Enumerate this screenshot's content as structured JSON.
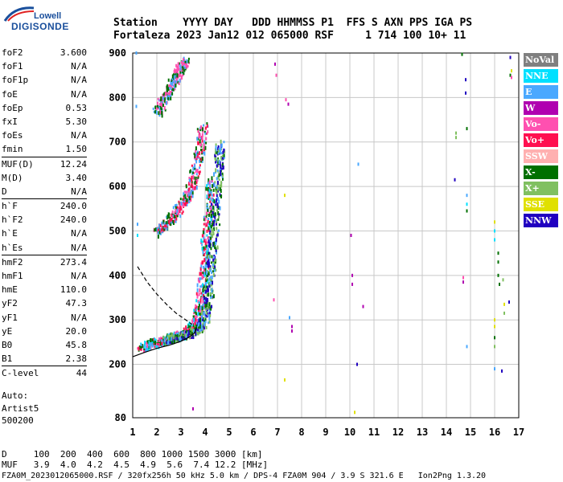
{
  "logo": {
    "line1": "Lowell",
    "line2": "DIGISONDE"
  },
  "header": {
    "row1": "Station    YYYY DAY   DDD HHMMSS P1  FFS S AXN PPS IGA PS",
    "row2": "Fortaleza 2023 Jan12 012 065000 RSF     1 714 100 10+ 11"
  },
  "params": [
    {
      "name": "foF2",
      "value": "3.600"
    },
    {
      "name": "foF1",
      "value": "N/A"
    },
    {
      "name": "foF1p",
      "value": "N/A"
    },
    {
      "name": "foE",
      "value": "N/A"
    },
    {
      "name": "foEp",
      "value": "0.53"
    },
    {
      "name": "fxI",
      "value": "5.30"
    },
    {
      "name": "foEs",
      "value": "N/A"
    },
    {
      "name": "fmin",
      "value": "1.50"
    },
    {
      "name": "MUF(D)",
      "value": "12.24",
      "sep": true
    },
    {
      "name": "M(D)",
      "value": "3.40"
    },
    {
      "name": "D",
      "value": "N/A"
    },
    {
      "name": "h`F",
      "value": "240.0",
      "sep": true
    },
    {
      "name": "h`F2",
      "value": "240.0"
    },
    {
      "name": "h`E",
      "value": "N/A"
    },
    {
      "name": "h`Es",
      "value": "N/A"
    },
    {
      "name": "hmF2",
      "value": "273.4",
      "sep": true
    },
    {
      "name": "hmF1",
      "value": "N/A"
    },
    {
      "name": "hmE",
      "value": "110.0"
    },
    {
      "name": "yF2",
      "value": "47.3"
    },
    {
      "name": "yF1",
      "value": "N/A"
    },
    {
      "name": "yE",
      "value": "20.0"
    },
    {
      "name": "B0",
      "value": "45.8"
    },
    {
      "name": "B1",
      "value": "2.38"
    },
    {
      "name": "C-level",
      "value": "44",
      "sep": true
    }
  ],
  "auto": {
    "line1": "Auto:",
    "line2": "Artist5",
    "line3": "500200"
  },
  "footer": {
    "row_d": "D     100  200  400  600  800 1000 1500 3000 [km]",
    "row_muf": "MUF   3.9  4.0  4.2  4.5  4.9  5.6  7.4 12.2 [MHz]",
    "info": "FZA0M_2023012065000.RSF / 320fx256h 50 kHz 5.0 km / DPS-4 FZA0M 904 / 3.9 S 321.6 E   Ion2Png 1.3.20"
  },
  "legend": [
    {
      "label": "NoVal",
      "color": "#808080"
    },
    {
      "label": "NNE",
      "color": "#00e0ff"
    },
    {
      "label": "E",
      "color": "#4aa8ff"
    },
    {
      "label": "W",
      "color": "#b000b0"
    },
    {
      "label": "Vo-",
      "color": "#ff50b0"
    },
    {
      "label": "Vo+",
      "color": "#ff1050"
    },
    {
      "label": "SSW",
      "color": "#ffb0b0"
    },
    {
      "label": "X-",
      "color": "#007000"
    },
    {
      "label": "X+",
      "color": "#80c060"
    },
    {
      "label": "SSE",
      "color": "#e0e000"
    },
    {
      "label": "NNW",
      "color": "#2000c0"
    }
  ],
  "chart_data": {
    "type": "scatter",
    "title": "",
    "xlabel": "",
    "ylabel": "",
    "xlim": [
      1,
      17
    ],
    "ylim": [
      80,
      900
    ],
    "x_ticks": [
      1,
      2,
      3,
      4,
      5,
      6,
      7,
      8,
      9,
      10,
      11,
      12,
      13,
      14,
      15,
      16,
      17
    ],
    "y_ticks": [
      80,
      200,
      300,
      400,
      500,
      600,
      700,
      800,
      900
    ],
    "grid": true,
    "legend_position": "right",
    "profile_solid": [
      [
        1.0,
        217
      ],
      [
        1.5,
        227
      ],
      [
        2.0,
        236
      ],
      [
        2.5,
        243
      ],
      [
        3.0,
        252
      ],
      [
        3.3,
        260
      ],
      [
        3.55,
        270
      ],
      [
        3.65,
        283
      ]
    ],
    "profile_dashed": [
      [
        1.2,
        420
      ],
      [
        1.6,
        385
      ],
      [
        2.0,
        358
      ],
      [
        2.4,
        335
      ],
      [
        2.8,
        315
      ],
      [
        3.2,
        300
      ],
      [
        3.45,
        290
      ]
    ],
    "traces": [
      {
        "name": "F2 O-trace",
        "points": [
          [
            1.3,
            240
          ],
          [
            1.8,
            250
          ],
          [
            2.2,
            256
          ],
          [
            2.6,
            262
          ],
          [
            3.0,
            268
          ],
          [
            3.3,
            276
          ],
          [
            3.55,
            292
          ],
          [
            3.75,
            330
          ],
          [
            3.9,
            400
          ],
          [
            4.0,
            470
          ],
          [
            4.1,
            540
          ],
          [
            4.2,
            620
          ]
        ],
        "colors": [
          "#ff1050",
          "#ff50b0",
          "#4aa8ff",
          "#00e0ff",
          "#007000"
        ]
      },
      {
        "name": "F2 X-trace",
        "points": [
          [
            2.3,
            258
          ],
          [
            2.8,
            264
          ],
          [
            3.3,
            272
          ],
          [
            3.7,
            282
          ],
          [
            4.0,
            310
          ],
          [
            4.15,
            370
          ],
          [
            4.25,
            430
          ],
          [
            4.35,
            500
          ],
          [
            4.45,
            580
          ],
          [
            4.55,
            660
          ],
          [
            4.6,
            700
          ]
        ],
        "colors": [
          "#2000c0",
          "#007000",
          "#80c060",
          "#4aa8ff"
        ]
      },
      {
        "name": "Multihop",
        "points": [
          [
            2.0,
            500
          ],
          [
            2.4,
            520
          ],
          [
            2.8,
            545
          ],
          [
            3.2,
            575
          ],
          [
            3.5,
            620
          ],
          [
            3.75,
            680
          ],
          [
            3.9,
            740
          ]
        ],
        "colors": [
          "#ff1050",
          "#ff50b0",
          "#007000",
          "#4aa8ff"
        ]
      },
      {
        "name": "Multihop 3",
        "points": [
          [
            2.0,
            770
          ],
          [
            2.3,
            800
          ],
          [
            2.6,
            830
          ],
          [
            2.9,
            860
          ],
          [
            3.2,
            890
          ]
        ],
        "colors": [
          "#ff50b0",
          "#007000",
          "#4aa8ff"
        ]
      }
    ],
    "scattered_points": [
      {
        "x": 1.15,
        "y": 900,
        "c": "#4aa8ff"
      },
      {
        "x": 1.15,
        "y": 780,
        "c": "#4aa8ff"
      },
      {
        "x": 1.2,
        "y": 515,
        "c": "#4aa8ff"
      },
      {
        "x": 1.2,
        "y": 490,
        "c": "#00e0ff"
      },
      {
        "x": 6.9,
        "y": 875,
        "c": "#b000b0"
      },
      {
        "x": 6.95,
        "y": 850,
        "c": "#ff50b0"
      },
      {
        "x": 7.35,
        "y": 795,
        "c": "#ff50b0"
      },
      {
        "x": 7.45,
        "y": 785,
        "c": "#b000b0"
      },
      {
        "x": 7.3,
        "y": 580,
        "c": "#e0e000"
      },
      {
        "x": 7.3,
        "y": 165,
        "c": "#e0e000"
      },
      {
        "x": 7.5,
        "y": 305,
        "c": "#4aa8ff"
      },
      {
        "x": 7.6,
        "y": 285,
        "c": "#b000b0"
      },
      {
        "x": 7.6,
        "y": 275,
        "c": "#b000b0"
      },
      {
        "x": 6.85,
        "y": 345,
        "c": "#ff50b0"
      },
      {
        "x": 3.5,
        "y": 100,
        "c": "#b000b0"
      },
      {
        "x": 10.05,
        "y": 490,
        "c": "#b000b0"
      },
      {
        "x": 10.1,
        "y": 400,
        "c": "#b000b0"
      },
      {
        "x": 10.1,
        "y": 380,
        "c": "#b000b0"
      },
      {
        "x": 10.35,
        "y": 650,
        "c": "#4aa8ff"
      },
      {
        "x": 10.55,
        "y": 330,
        "c": "#b000b0"
      },
      {
        "x": 10.3,
        "y": 200,
        "c": "#2000c0"
      },
      {
        "x": 10.2,
        "y": 92,
        "c": "#e0e000"
      },
      {
        "x": 14.4,
        "y": 720,
        "c": "#80c060"
      },
      {
        "x": 14.4,
        "y": 710,
        "c": "#80c060"
      },
      {
        "x": 14.85,
        "y": 730,
        "c": "#007000"
      },
      {
        "x": 14.35,
        "y": 615,
        "c": "#2000c0"
      },
      {
        "x": 14.85,
        "y": 580,
        "c": "#4aa8ff"
      },
      {
        "x": 14.85,
        "y": 560,
        "c": "#00e0ff"
      },
      {
        "x": 14.85,
        "y": 545,
        "c": "#007000"
      },
      {
        "x": 14.85,
        "y": 240,
        "c": "#4aa8ff"
      },
      {
        "x": 14.7,
        "y": 395,
        "c": "#ff50b0"
      },
      {
        "x": 14.7,
        "y": 385,
        "c": "#b000b0"
      },
      {
        "x": 14.8,
        "y": 840,
        "c": "#2000c0"
      },
      {
        "x": 14.8,
        "y": 810,
        "c": "#2000c0"
      },
      {
        "x": 14.65,
        "y": 897,
        "c": "#007000"
      },
      {
        "x": 16.0,
        "y": 520,
        "c": "#e0e000"
      },
      {
        "x": 16.0,
        "y": 500,
        "c": "#00e0ff"
      },
      {
        "x": 16.0,
        "y": 480,
        "c": "#00e0ff"
      },
      {
        "x": 16.0,
        "y": 300,
        "c": "#e0e000"
      },
      {
        "x": 16.0,
        "y": 285,
        "c": "#e0e000"
      },
      {
        "x": 16.0,
        "y": 260,
        "c": "#007000"
      },
      {
        "x": 16.0,
        "y": 240,
        "c": "#80c060"
      },
      {
        "x": 16.0,
        "y": 190,
        "c": "#4aa8ff"
      },
      {
        "x": 16.15,
        "y": 450,
        "c": "#007000"
      },
      {
        "x": 16.15,
        "y": 430,
        "c": "#007000"
      },
      {
        "x": 16.15,
        "y": 400,
        "c": "#007000"
      },
      {
        "x": 16.2,
        "y": 380,
        "c": "#007000"
      },
      {
        "x": 16.35,
        "y": 390,
        "c": "#80c060"
      },
      {
        "x": 16.4,
        "y": 335,
        "c": "#e0e000"
      },
      {
        "x": 16.4,
        "y": 315,
        "c": "#80c060"
      },
      {
        "x": 16.3,
        "y": 185,
        "c": "#2000c0"
      },
      {
        "x": 16.6,
        "y": 340,
        "c": "#2000c0"
      },
      {
        "x": 16.65,
        "y": 890,
        "c": "#2000c0"
      },
      {
        "x": 16.7,
        "y": 860,
        "c": "#e0e000"
      },
      {
        "x": 16.65,
        "y": 850,
        "c": "#007000"
      },
      {
        "x": 16.7,
        "y": 845,
        "c": "#ff50b0"
      }
    ]
  }
}
